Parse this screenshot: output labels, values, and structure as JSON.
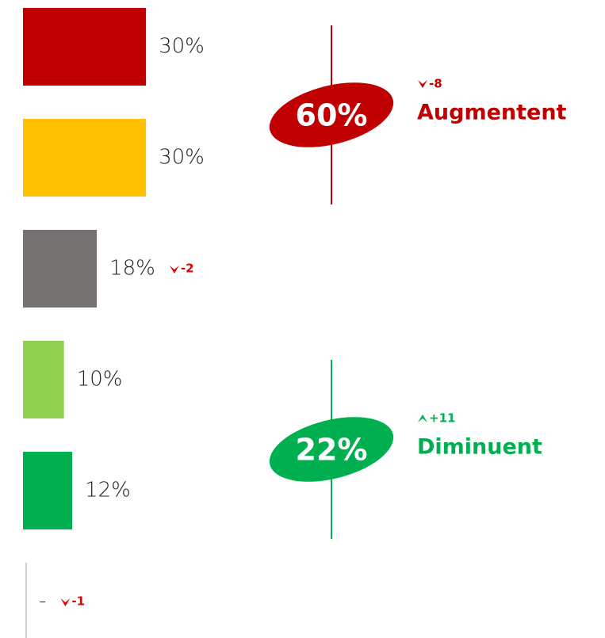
{
  "chart_data": {
    "type": "bar",
    "orientation": "horizontal",
    "categories": [
      null,
      null,
      null,
      null,
      null,
      null
    ],
    "values": [
      30,
      30,
      18,
      10,
      12,
      null
    ],
    "value_labels": [
      "30%",
      "30%",
      "18%",
      "10%",
      "12%",
      "-"
    ],
    "colors": [
      "#c00000",
      "#ffc000",
      "#767171",
      "#92d050",
      "#00b050",
      "#bfbfbf"
    ],
    "changes": [
      null,
      null,
      -2,
      null,
      null,
      -1
    ],
    "change_color": "#e00000",
    "summary": [
      {
        "value": 60,
        "value_label": "60%",
        "text": "Augmentent",
        "change": -8,
        "color": "#c00000"
      },
      {
        "value": 22,
        "value_label": "22%",
        "text": "Diminuent",
        "change": 11,
        "change_label": "+11",
        "color": "#00b050"
      }
    ]
  }
}
